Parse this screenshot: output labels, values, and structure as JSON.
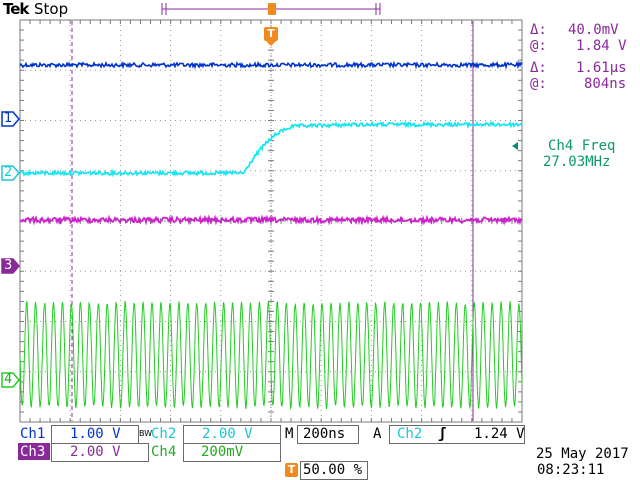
{
  "header": {
    "brand": "Tek",
    "run_state": "Stop",
    "trigger_marker": "T"
  },
  "colors": {
    "ch1": "#0033cc",
    "ch2": "#19e6f0",
    "ch3": "#cc22cc",
    "ch4": "#22cc22",
    "accent": "#f08a1e",
    "cursor": "#8a2a9a",
    "grid": "#7a7a7a"
  },
  "cursor_readout": {
    "delta_v_symbol": "Δ:",
    "delta_v": "40.0mV",
    "at_v_symbol": "@:",
    "at_v": "1.84 V",
    "delta_t_symbol": "Δ:",
    "delta_t": "1.61µs",
    "at_t_symbol": "@:",
    "at_t": "804ns"
  },
  "measurement": {
    "label": "Ch4 Freq",
    "value": "27.03MHz"
  },
  "channel_markers": [
    "1",
    "2",
    "3",
    "4"
  ],
  "status_bar": {
    "ch1_label": "Ch1",
    "ch1_scale": "1.00 V",
    "ch2_bw": "BW",
    "ch2_label": "Ch2",
    "ch2_scale": "2.00 V",
    "ch3_label": "Ch3",
    "ch3_scale": "2.00 V",
    "ch4_label": "Ch4",
    "ch4_scale": "200mV",
    "timebase_label": "M",
    "timebase": "200ns",
    "trigger_mode": "A",
    "trigger_source": "Ch2",
    "trigger_slope": "ʃ",
    "trigger_level": "1.24 V",
    "trigger_pos_icon": "T",
    "trigger_pos": "50.00 %",
    "date": "25 May 2017",
    "time": "08:23:11"
  }
}
